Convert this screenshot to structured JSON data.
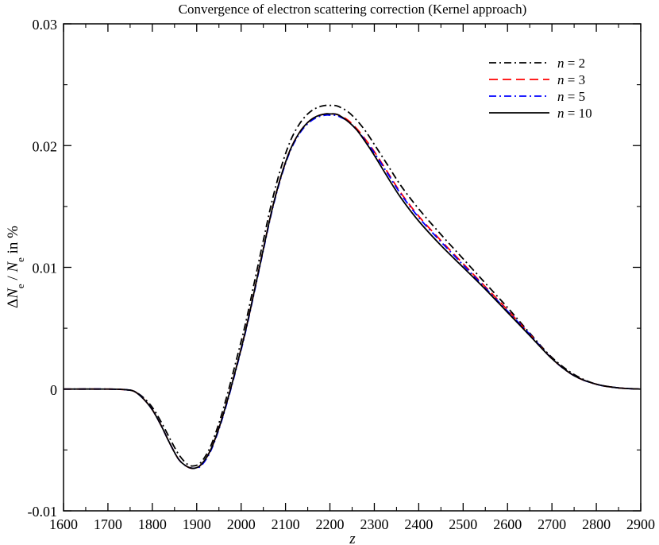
{
  "chart_data": {
    "type": "line",
    "title": "Convergence of electron scattering correction (Kernel approach)",
    "xlabel": "z",
    "ylabel": "ΔN_e / N_e in %",
    "xlim": [
      1600,
      2900
    ],
    "ylim": [
      -0.01,
      0.03
    ],
    "x_ticks": [
      1600,
      1700,
      1800,
      1900,
      2000,
      2100,
      2200,
      2300,
      2400,
      2500,
      2600,
      2700,
      2800,
      2900
    ],
    "y_ticks": [
      "-0.01",
      "0",
      "0.01",
      "0.02",
      "0.03"
    ],
    "y_tick_values": [
      -0.01,
      0,
      0.01,
      0.02,
      0.03
    ],
    "grid": false,
    "legend_position": "top-right",
    "series": [
      {
        "name": "n = 2",
        "legend_label": {
          "var": "n",
          "rest": " = 2"
        },
        "color": "#000000",
        "dash": "dash-dot",
        "x": [
          1600,
          1700,
          1740,
          1760,
          1780,
          1800,
          1820,
          1840,
          1860,
          1880,
          1895,
          1910,
          1930,
          1950,
          1970,
          1990,
          2010,
          2030,
          2050,
          2070,
          2090,
          2110,
          2130,
          2150,
          2170,
          2190,
          2200,
          2210,
          2220,
          2240,
          2260,
          2280,
          2300,
          2330,
          2360,
          2400,
          2450,
          2500,
          2550,
          2600,
          2650,
          2700,
          2750,
          2800,
          2850,
          2900
        ],
        "y": [
          0,
          0,
          -5e-05,
          -0.0002,
          -0.0007,
          -0.0015,
          -0.0027,
          -0.0041,
          -0.0054,
          -0.0062,
          -0.0063,
          -0.006,
          -0.0048,
          -0.0028,
          -0.0003,
          0.0025,
          0.0054,
          0.0088,
          0.0122,
          0.0155,
          0.0182,
          0.0203,
          0.0217,
          0.0226,
          0.0231,
          0.0233,
          0.0233,
          0.0233,
          0.0232,
          0.0228,
          0.0221,
          0.0212,
          0.0201,
          0.0184,
          0.0167,
          0.0148,
          0.0127,
          0.0107,
          0.0087,
          0.0067,
          0.0046,
          0.0026,
          0.0012,
          0.0004,
          0.0001,
          0
        ]
      },
      {
        "name": "n = 3",
        "legend_label": {
          "var": "n",
          "rest": " = 3"
        },
        "color": "#ff0000",
        "dash": "dashed",
        "x": [
          1600,
          1700,
          1740,
          1760,
          1780,
          1800,
          1820,
          1840,
          1860,
          1880,
          1895,
          1910,
          1930,
          1950,
          1970,
          1990,
          2010,
          2030,
          2050,
          2070,
          2090,
          2110,
          2130,
          2150,
          2170,
          2190,
          2200,
          2210,
          2220,
          2240,
          2260,
          2280,
          2300,
          2330,
          2360,
          2400,
          2450,
          2500,
          2550,
          2600,
          2650,
          2700,
          2750,
          2800,
          2850,
          2900
        ],
        "y": [
          0,
          0,
          -5e-05,
          -0.0002,
          -0.0008,
          -0.0017,
          -0.003,
          -0.0045,
          -0.0058,
          -0.0064,
          -0.0065,
          -0.0062,
          -0.0051,
          -0.0032,
          -0.0008,
          0.0019,
          0.0048,
          0.0081,
          0.0115,
          0.0148,
          0.0175,
          0.0196,
          0.021,
          0.0219,
          0.0224,
          0.0226,
          0.0226,
          0.0226,
          0.0225,
          0.0221,
          0.0214,
          0.0205,
          0.0195,
          0.0178,
          0.0161,
          0.0142,
          0.0122,
          0.0103,
          0.0084,
          0.0065,
          0.0045,
          0.0025,
          0.0011,
          0.0004,
          0.0001,
          0
        ]
      },
      {
        "name": "n = 5",
        "legend_label": {
          "var": "n",
          "rest": " = 5"
        },
        "color": "#0000ff",
        "dash": "dash-dot",
        "x": [
          1600,
          1700,
          1740,
          1760,
          1780,
          1800,
          1820,
          1840,
          1860,
          1880,
          1895,
          1910,
          1930,
          1950,
          1970,
          1990,
          2010,
          2030,
          2050,
          2070,
          2090,
          2110,
          2130,
          2150,
          2170,
          2190,
          2200,
          2210,
          2220,
          2240,
          2260,
          2280,
          2300,
          2330,
          2360,
          2400,
          2450,
          2500,
          2550,
          2600,
          2650,
          2700,
          2750,
          2800,
          2850,
          2900
        ],
        "y": [
          0,
          0,
          -5e-05,
          -0.0002,
          -0.0008,
          -0.0017,
          -0.003,
          -0.0045,
          -0.0058,
          -0.0064,
          -0.0065,
          -0.0063,
          -0.0052,
          -0.0033,
          -0.0009,
          0.0018,
          0.0047,
          0.008,
          0.0114,
          0.0147,
          0.0174,
          0.0195,
          0.0209,
          0.0218,
          0.0223,
          0.0225,
          0.0225,
          0.0225,
          0.0224,
          0.022,
          0.0213,
          0.0204,
          0.0194,
          0.0177,
          0.016,
          0.0141,
          0.0121,
          0.0102,
          0.0083,
          0.0064,
          0.0045,
          0.0025,
          0.0011,
          0.0004,
          0.0001,
          0
        ]
      },
      {
        "name": "n = 10",
        "legend_label": {
          "var": "n",
          "rest": " = 10"
        },
        "color": "#000000",
        "dash": "solid",
        "x": [
          1600,
          1700,
          1740,
          1760,
          1780,
          1800,
          1820,
          1840,
          1860,
          1880,
          1895,
          1910,
          1930,
          1950,
          1970,
          1990,
          2010,
          2030,
          2050,
          2070,
          2090,
          2110,
          2130,
          2150,
          2170,
          2190,
          2200,
          2210,
          2220,
          2240,
          2260,
          2280,
          2300,
          2330,
          2360,
          2400,
          2450,
          2500,
          2550,
          2600,
          2650,
          2700,
          2750,
          2800,
          2850,
          2900
        ],
        "y": [
          0,
          0,
          -5e-05,
          -0.0002,
          -0.0008,
          -0.0017,
          -0.003,
          -0.0045,
          -0.0058,
          -0.0064,
          -0.0065,
          -0.0062,
          -0.0051,
          -0.0032,
          -0.0008,
          0.0019,
          0.0048,
          0.0081,
          0.0115,
          0.0148,
          0.0175,
          0.0196,
          0.021,
          0.0219,
          0.0224,
          0.0226,
          0.0226,
          0.0226,
          0.0225,
          0.022,
          0.0213,
          0.0203,
          0.0192,
          0.0174,
          0.0157,
          0.0138,
          0.0118,
          0.01,
          0.0082,
          0.0063,
          0.0044,
          0.0025,
          0.0011,
          0.0004,
          0.0001,
          0
        ]
      }
    ]
  }
}
